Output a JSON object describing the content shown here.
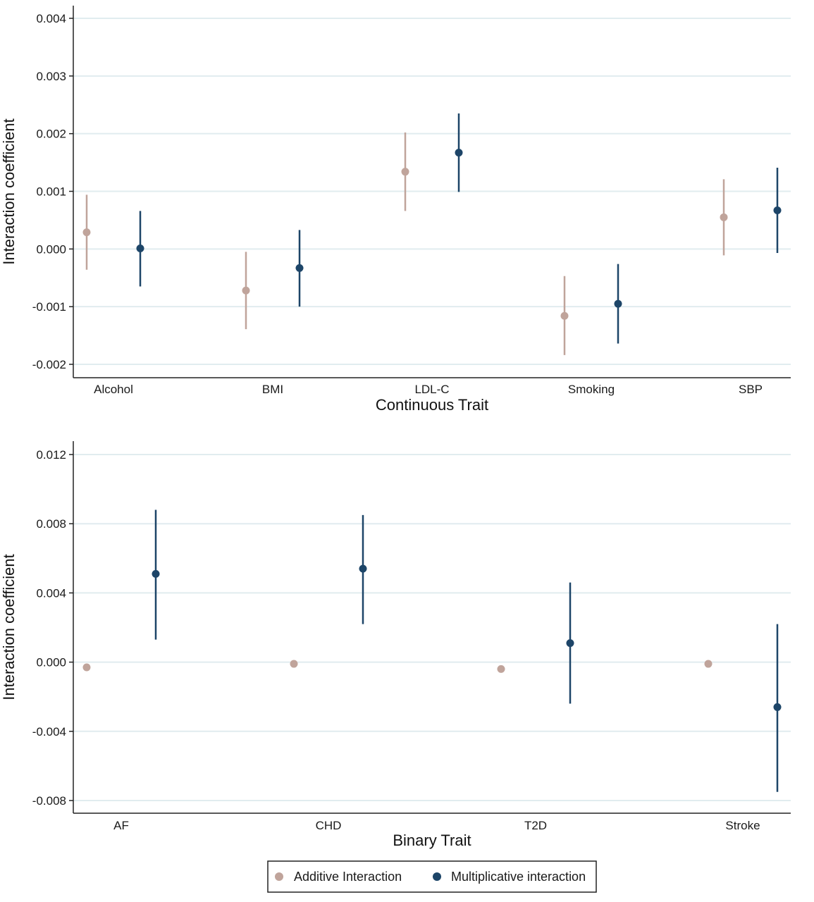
{
  "chart_data": [
    {
      "type": "scatter",
      "subtype": "point-with-error-bars",
      "xlabel": "Continuous Trait",
      "ylabel": "Interaction coefficient",
      "categories": [
        "Alcohol",
        "BMI",
        "LDL-C",
        "Smoking",
        "SBP"
      ],
      "yticks": [
        "0.004",
        "0.003",
        "0.002",
        "0.001",
        "0.000",
        "-0.001",
        "-0.002"
      ],
      "ylim": [
        -0.0022,
        0.0042
      ],
      "grid": true,
      "series": [
        {
          "name": "Additive Interaction",
          "values": [
            0.00029,
            -0.00072,
            0.00134,
            -0.00116,
            0.00055
          ],
          "lower": [
            -0.00036,
            -0.00139,
            0.00066,
            -0.00184,
            -0.00011
          ],
          "upper": [
            0.00094,
            -5e-05,
            0.00202,
            -0.00047,
            0.00121
          ]
        },
        {
          "name": "Multiplicative interaction",
          "values": [
            1e-05,
            -0.00033,
            0.00167,
            -0.00095,
            0.00067
          ],
          "lower": [
            -0.00065,
            -0.001,
            0.00099,
            -0.00164,
            -7e-05
          ],
          "upper": [
            0.00066,
            0.00033,
            0.00235,
            -0.00026,
            0.00141
          ]
        }
      ]
    },
    {
      "type": "scatter",
      "subtype": "point-with-error-bars",
      "xlabel": "Binary Trait",
      "ylabel": "Interaction coefficient",
      "categories": [
        "AF",
        "CHD",
        "T2D",
        "Stroke"
      ],
      "yticks": [
        "0.012",
        "0.008",
        "0.004",
        "0.000",
        "-0.004",
        "-0.008"
      ],
      "ylim": [
        -0.0088,
        0.0128
      ],
      "grid": true,
      "series": [
        {
          "name": "Additive Interaction",
          "values": [
            -0.0003,
            -0.0001,
            -0.0004,
            -0.0001
          ],
          "lower": [
            null,
            null,
            null,
            null
          ],
          "upper": [
            null,
            null,
            null,
            null
          ]
        },
        {
          "name": "Multiplicative interaction",
          "values": [
            0.0051,
            0.0054,
            0.0011,
            -0.0026
          ],
          "lower": [
            0.0013,
            0.0022,
            -0.0024,
            -0.0075
          ],
          "upper": [
            0.0088,
            0.0085,
            0.0046,
            0.0022
          ]
        }
      ]
    }
  ],
  "colors": {
    "additive": "#c0a49b",
    "multiplicative": "#1d4568",
    "grid": "#e1ecef",
    "axis": "#222222"
  },
  "legend": {
    "placement": "bottom-center",
    "items": [
      {
        "label": "Additive Interaction",
        "color": "#c0a49b"
      },
      {
        "label": "Multiplicative interaction",
        "color": "#1d4568"
      }
    ]
  }
}
